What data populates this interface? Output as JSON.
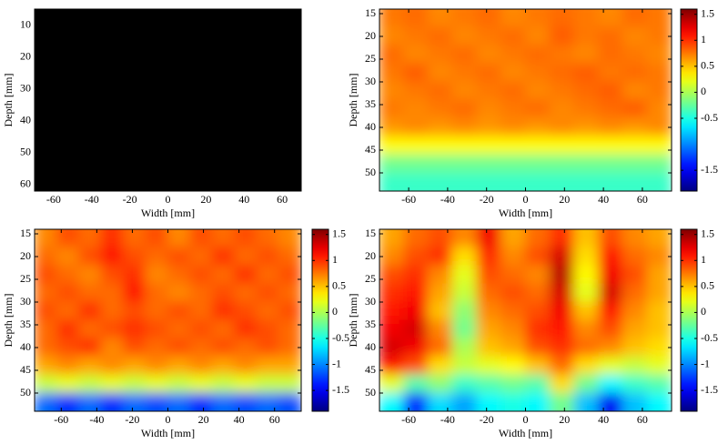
{
  "chart_data": [
    {
      "type": "image",
      "xlabel": "Width [mm]",
      "ylabel": "Depth [mm]",
      "xlim": [
        -70,
        70
      ],
      "xticks": [
        -60,
        -40,
        -20,
        0,
        20,
        40,
        60
      ],
      "ylim": [
        5,
        62
      ],
      "yticks": [
        10,
        20,
        30,
        40,
        50,
        60
      ],
      "y_reversed": true
    },
    {
      "type": "heatmap",
      "xlabel": "Width [mm]",
      "ylabel": "Depth [mm]",
      "colormap": "jet",
      "xlim": [
        -75,
        75
      ],
      "xticks": [
        -60,
        -40,
        -20,
        0,
        20,
        40,
        60
      ],
      "ylim": [
        14,
        54
      ],
      "yticks": [
        15,
        20,
        25,
        30,
        35,
        40,
        45,
        50
      ],
      "y_reversed": true,
      "clim": [
        -1.9,
        1.6
      ],
      "cticks": [
        -1.5,
        -0.5,
        0,
        0.5,
        1,
        1.5
      ],
      "x": [
        -68.75,
        -56.25,
        -43.75,
        -31.25,
        -18.75,
        -6.25,
        6.25,
        18.75,
        31.25,
        43.75,
        56.25,
        68.75
      ],
      "y": [
        16,
        20,
        24,
        28,
        32,
        36,
        40,
        44,
        48,
        52
      ],
      "values": [
        [
          0.75,
          0.8,
          0.7,
          0.75,
          0.8,
          0.7,
          0.75,
          0.8,
          0.75,
          0.7,
          0.8,
          0.75
        ],
        [
          0.7,
          0.75,
          0.8,
          0.7,
          0.75,
          0.8,
          0.7,
          0.85,
          0.75,
          0.8,
          0.7,
          0.75
        ],
        [
          0.8,
          0.7,
          0.75,
          0.8,
          0.7,
          0.75,
          0.8,
          0.75,
          0.7,
          0.8,
          0.75,
          0.7
        ],
        [
          0.75,
          0.85,
          0.7,
          0.75,
          0.8,
          0.7,
          0.75,
          0.8,
          0.85,
          0.75,
          0.8,
          0.75
        ],
        [
          0.7,
          0.75,
          0.8,
          0.7,
          0.75,
          0.8,
          0.7,
          0.75,
          0.8,
          0.85,
          0.7,
          0.75
        ],
        [
          0.75,
          0.7,
          0.75,
          0.8,
          0.7,
          0.75,
          0.8,
          0.7,
          0.75,
          0.8,
          0.85,
          0.7
        ],
        [
          0.65,
          0.7,
          0.65,
          0.7,
          0.65,
          0.7,
          0.65,
          0.7,
          0.65,
          0.7,
          0.65,
          0.7
        ],
        [
          0.3,
          0.3,
          0.3,
          0.3,
          0.3,
          0.3,
          0.3,
          0.3,
          0.3,
          0.3,
          0.3,
          0.3
        ],
        [
          -0.2,
          -0.2,
          -0.2,
          -0.2,
          -0.2,
          -0.2,
          -0.2,
          -0.2,
          -0.2,
          -0.2,
          -0.2,
          -0.2
        ],
        [
          -0.4,
          -0.4,
          -0.4,
          -0.4,
          -0.4,
          -0.4,
          -0.4,
          -0.4,
          -0.4,
          -0.4,
          -0.4,
          -0.4
        ]
      ]
    },
    {
      "type": "heatmap",
      "xlabel": "Width [mm]",
      "ylabel": "Depth [mm]",
      "colormap": "jet",
      "xlim": [
        -75,
        75
      ],
      "xticks": [
        -60,
        -40,
        -20,
        0,
        20,
        40,
        60
      ],
      "ylim": [
        14,
        54
      ],
      "yticks": [
        15,
        20,
        25,
        30,
        35,
        40,
        45,
        50
      ],
      "y_reversed": true,
      "clim": [
        -1.9,
        1.6
      ],
      "cticks": [
        -1.5,
        -1,
        -0.5,
        0,
        0.5,
        1,
        1.5
      ],
      "x": [
        -68.75,
        -56.25,
        -43.75,
        -31.25,
        -18.75,
        -6.25,
        6.25,
        18.75,
        31.25,
        43.75,
        56.25,
        68.75
      ],
      "y": [
        16,
        20,
        24,
        28,
        32,
        36,
        40,
        44,
        48,
        52
      ],
      "values": [
        [
          0.7,
          0.9,
          0.8,
          1.0,
          0.8,
          0.9,
          0.7,
          0.9,
          0.8,
          0.9,
          0.8,
          0.7
        ],
        [
          0.8,
          0.7,
          0.9,
          1.1,
          0.9,
          0.8,
          0.9,
          0.8,
          1.0,
          0.8,
          0.9,
          0.8
        ],
        [
          0.9,
          0.8,
          0.7,
          0.9,
          1.0,
          0.7,
          0.8,
          0.9,
          0.8,
          1.0,
          0.8,
          0.9
        ],
        [
          0.8,
          0.9,
          0.8,
          0.8,
          1.1,
          0.8,
          0.7,
          0.8,
          0.9,
          0.8,
          0.9,
          0.8
        ],
        [
          0.9,
          0.8,
          1.0,
          0.8,
          0.9,
          0.8,
          0.9,
          0.8,
          1.0,
          0.9,
          0.8,
          0.9
        ],
        [
          0.8,
          1.0,
          0.8,
          0.9,
          1.0,
          0.9,
          0.8,
          0.9,
          0.8,
          1.0,
          0.9,
          0.8
        ],
        [
          0.8,
          0.9,
          1.0,
          0.7,
          0.9,
          0.8,
          0.9,
          0.8,
          0.9,
          0.8,
          0.9,
          0.8
        ],
        [
          0.6,
          0.7,
          0.6,
          0.7,
          0.6,
          0.7,
          0.6,
          0.7,
          0.6,
          0.7,
          0.6,
          0.6
        ],
        [
          0.1,
          0.2,
          0.1,
          0.2,
          0.1,
          0.2,
          0.1,
          0.2,
          0.1,
          0.2,
          0.1,
          0.1
        ],
        [
          -1.1,
          -1.3,
          -1.1,
          -1.3,
          -1.1,
          -1.2,
          -1.1,
          -1.3,
          -1.1,
          -1.2,
          -1.1,
          -1.2
        ]
      ]
    },
    {
      "type": "heatmap",
      "xlabel": "Width [mm]",
      "ylabel": "Depth [mm]",
      "colormap": "jet",
      "xlim": [
        -75,
        75
      ],
      "xticks": [
        -60,
        -40,
        -20,
        0,
        20,
        40,
        60
      ],
      "ylim": [
        14,
        54
      ],
      "yticks": [
        15,
        20,
        25,
        30,
        35,
        40,
        45,
        50
      ],
      "y_reversed": true,
      "clim": [
        -1.9,
        1.6
      ],
      "cticks": [
        -1.5,
        -1,
        -0.5,
        0,
        0.5,
        1,
        1.5
      ],
      "x": [
        -68.75,
        -56.25,
        -43.75,
        -31.25,
        -18.75,
        -6.25,
        6.25,
        18.75,
        31.25,
        43.75,
        56.25,
        68.75
      ],
      "y": [
        16,
        20,
        24,
        28,
        32,
        36,
        40,
        44,
        48,
        52
      ],
      "values": [
        [
          0.6,
          0.8,
          0.9,
          0.7,
          1.2,
          0.6,
          0.8,
          1.0,
          0.5,
          0.9,
          0.7,
          0.6
        ],
        [
          0.7,
          0.9,
          1.0,
          0.4,
          1.0,
          0.7,
          0.9,
          1.3,
          0.4,
          1.1,
          0.8,
          0.7
        ],
        [
          0.9,
          1.0,
          0.7,
          0.2,
          0.9,
          0.8,
          0.7,
          1.4,
          0.3,
          1.2,
          0.9,
          0.6
        ],
        [
          1.0,
          1.1,
          0.6,
          0.1,
          0.8,
          0.9,
          0.8,
          1.3,
          0.2,
          1.3,
          0.8,
          0.6
        ],
        [
          1.1,
          1.2,
          0.5,
          -0.1,
          0.7,
          0.8,
          0.9,
          1.2,
          0.5,
          1.1,
          0.7,
          0.5
        ],
        [
          1.2,
          1.3,
          0.7,
          -0.2,
          0.6,
          0.7,
          1.0,
          1.1,
          0.7,
          0.9,
          0.6,
          0.5
        ],
        [
          1.3,
          1.2,
          0.8,
          0.0,
          0.5,
          0.6,
          0.9,
          1.0,
          0.8,
          0.7,
          0.5,
          0.4
        ],
        [
          1.1,
          0.9,
          0.4,
          0.1,
          0.2,
          0.3,
          0.5,
          0.8,
          0.4,
          0.2,
          0.1,
          0.2
        ],
        [
          0.2,
          -0.3,
          -0.1,
          -0.4,
          -0.3,
          -0.2,
          -0.3,
          0.4,
          -0.2,
          -0.6,
          -0.4,
          -0.3
        ],
        [
          -0.6,
          -1.3,
          -0.7,
          -0.9,
          -0.6,
          -0.5,
          -0.6,
          -0.2,
          -0.8,
          -1.5,
          -0.8,
          -0.6
        ]
      ]
    }
  ]
}
